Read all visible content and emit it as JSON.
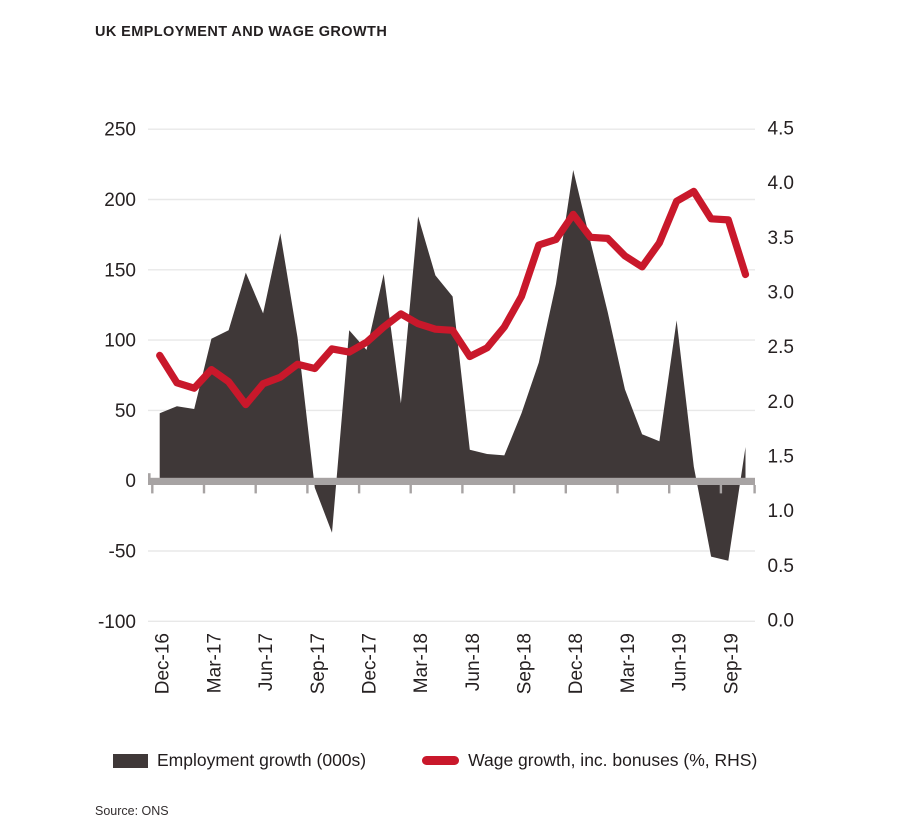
{
  "header": {
    "title": "UK EMPLOYMENT AND WAGE GROWTH"
  },
  "legend": {
    "employment": {
      "label": "Employment growth (000s)",
      "swatch_color": "#3f3838"
    },
    "wage": {
      "label": "Wage growth, inc. bonuses (%, RHS)",
      "swatch_color": "#c9182b"
    }
  },
  "footer": {
    "source": "Source: ONS"
  },
  "colors": {
    "area": "#3f3838",
    "line": "#c9182b",
    "gridline": "#e8e8e8",
    "axis_band": "#a7a3a3",
    "text": "#262122"
  },
  "chart_data": {
    "type": "area",
    "title": "UK EMPLOYMENT AND WAGE GROWTH",
    "xlabel": "",
    "ylabel_left": "Employment growth (000s)",
    "ylabel_right": "Wage growth, inc. bonuses (%, RHS)",
    "grid": "horizontal",
    "legend_position": "bottom",
    "x": [
      "Dec-16",
      "Jan-17",
      "Feb-17",
      "Mar-17",
      "Apr-17",
      "May-17",
      "Jun-17",
      "Jul-17",
      "Aug-17",
      "Sep-17",
      "Oct-17",
      "Nov-17",
      "Dec-17",
      "Jan-18",
      "Feb-18",
      "Mar-18",
      "Apr-18",
      "May-18",
      "Jun-18",
      "Jul-18",
      "Aug-18",
      "Sep-18",
      "Oct-18",
      "Nov-18",
      "Dec-18",
      "Jan-19",
      "Feb-19",
      "Mar-19",
      "Apr-19",
      "May-19",
      "Jun-19",
      "Jul-19",
      "Aug-19",
      "Sep-19",
      "Oct-19"
    ],
    "x_axis_tick_labels": [
      "Dec-16",
      "Mar-17",
      "Jun-17",
      "Sep-17",
      "Dec-17",
      "Mar-18",
      "Jun-18",
      "Sep-18",
      "Dec-18",
      "Mar-19",
      "Jun-19",
      "Sep-19"
    ],
    "series": [
      {
        "name": "Employment growth (000s)",
        "type": "area",
        "axis": "left",
        "color": "#3f3838",
        "values": [
          48,
          53,
          51,
          101,
          107,
          148,
          119,
          176,
          102,
          -5,
          -37,
          107,
          93,
          147,
          55,
          188,
          146,
          131,
          22,
          19,
          18,
          48,
          84,
          140,
          221,
          170,
          120,
          65,
          33,
          28,
          114,
          10,
          -54,
          -57,
          24
        ]
      },
      {
        "name": "Wage growth, inc. bonuses (%, RHS)",
        "type": "line",
        "axis": "right",
        "color": "#c9182b",
        "values": [
          2.42,
          2.17,
          2.12,
          2.29,
          2.18,
          1.97,
          2.16,
          2.22,
          2.34,
          2.3,
          2.48,
          2.45,
          2.54,
          2.68,
          2.8,
          2.71,
          2.66,
          2.65,
          2.41,
          2.49,
          2.68,
          2.96,
          3.43,
          3.48,
          3.71,
          3.5,
          3.49,
          3.33,
          3.23,
          3.45,
          3.83,
          3.92,
          3.67,
          3.66,
          3.16
        ]
      }
    ],
    "left_axis": {
      "min": -100,
      "max": 250,
      "tick_step": 50,
      "ticks": [
        250,
        200,
        150,
        100,
        50,
        0,
        -50,
        -100
      ]
    },
    "right_axis": {
      "min": 0.0,
      "max": 4.5,
      "tick_step": 0.5,
      "ticks": [
        4.5,
        4.0,
        3.5,
        3.0,
        2.5,
        2.0,
        1.5,
        1.0,
        0.5,
        0.0
      ]
    }
  }
}
